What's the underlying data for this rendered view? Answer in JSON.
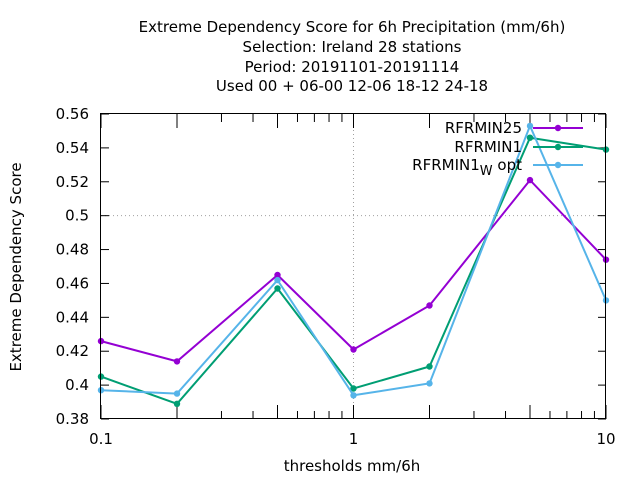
{
  "chart_data": {
    "type": "line",
    "title_lines": [
      "Extreme Dependency Score  for 6h Precipitation (mm/6h)",
      "Selection: Ireland      28 stations",
      "Period: 20191101-20191114",
      "Used  00 + 06-00 12-06 18-12 24-18"
    ],
    "xlabel": "thresholds mm/6h",
    "ylabel": "Extreme Dependency Score",
    "x_scale": "log",
    "xlim": [
      0.1,
      10
    ],
    "ylim": [
      0.38,
      0.56
    ],
    "x_ticks": [
      0.1,
      1,
      10
    ],
    "x_tick_labels": [
      "0.1",
      "1",
      "10"
    ],
    "y_ticks": [
      0.38,
      0.4,
      0.42,
      0.44,
      0.46,
      0.48,
      0.5,
      0.52,
      0.54,
      0.56
    ],
    "y_tick_labels": [
      "0.38",
      "0.4",
      "0.42",
      "0.44",
      "0.46",
      "0.48",
      "0.5",
      "0.52",
      "0.54",
      "0.56"
    ],
    "grid": "dotted at x=1 and y=0.5",
    "legend_position": "top-right",
    "x": [
      0.1,
      0.2,
      0.5,
      1,
      2,
      5,
      10
    ],
    "series": [
      {
        "name": "RFRMIN25",
        "color": "#9400d3",
        "values": [
          0.426,
          0.414,
          0.465,
          0.421,
          0.447,
          0.521,
          0.474
        ]
      },
      {
        "name": "RFRMIN1",
        "color": "#009e73",
        "values": [
          0.405,
          0.389,
          0.457,
          0.398,
          0.411,
          0.546,
          0.539
        ]
      },
      {
        "name_main": "RFRMIN1",
        "name_sub": "W",
        "name_rest": " opt",
        "color": "#56b4e9",
        "values": [
          0.397,
          0.395,
          0.462,
          0.394,
          0.401,
          0.553,
          0.45
        ]
      }
    ]
  }
}
